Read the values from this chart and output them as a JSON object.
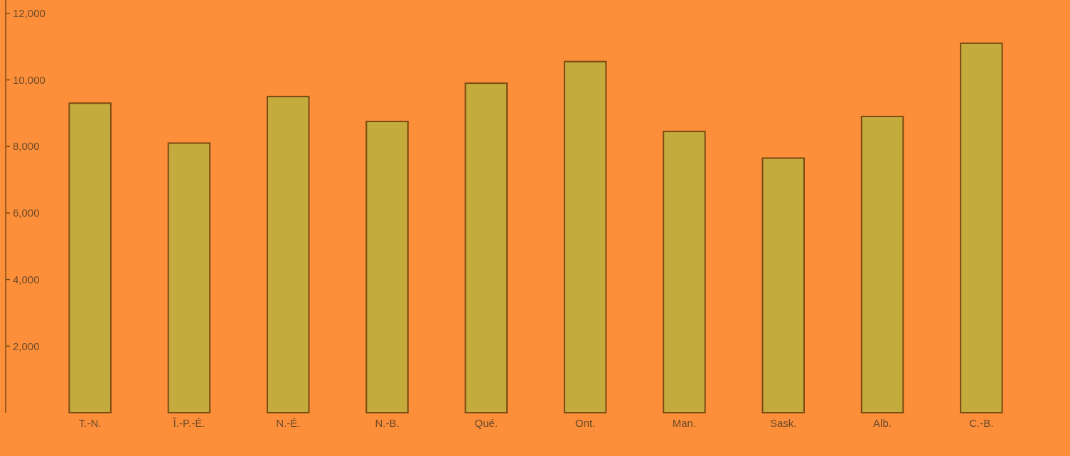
{
  "chart_data": {
    "type": "bar",
    "categories": [
      "T.-N.",
      "Î.-P.-É.",
      "N.-É.",
      "N.-B.",
      "Qué.",
      "Ont.",
      "Man.",
      "Sask.",
      "Alb.",
      "C.-B."
    ],
    "values": [
      9300,
      8100,
      9500,
      8750,
      9900,
      10550,
      8450,
      7650,
      8900,
      11100
    ],
    "color": "#c4ab3e",
    "ylim": [
      0,
      12400
    ],
    "yticks": [
      {
        "value": 2000,
        "label": "2,000"
      },
      {
        "value": 4000,
        "label": "4,000"
      },
      {
        "value": 6000,
        "label": "6,000"
      },
      {
        "value": 8000,
        "label": "8,000"
      },
      {
        "value": 10000,
        "label": "10,000"
      },
      {
        "value": 12000,
        "label": "12,000"
      }
    ],
    "grid": false
  }
}
